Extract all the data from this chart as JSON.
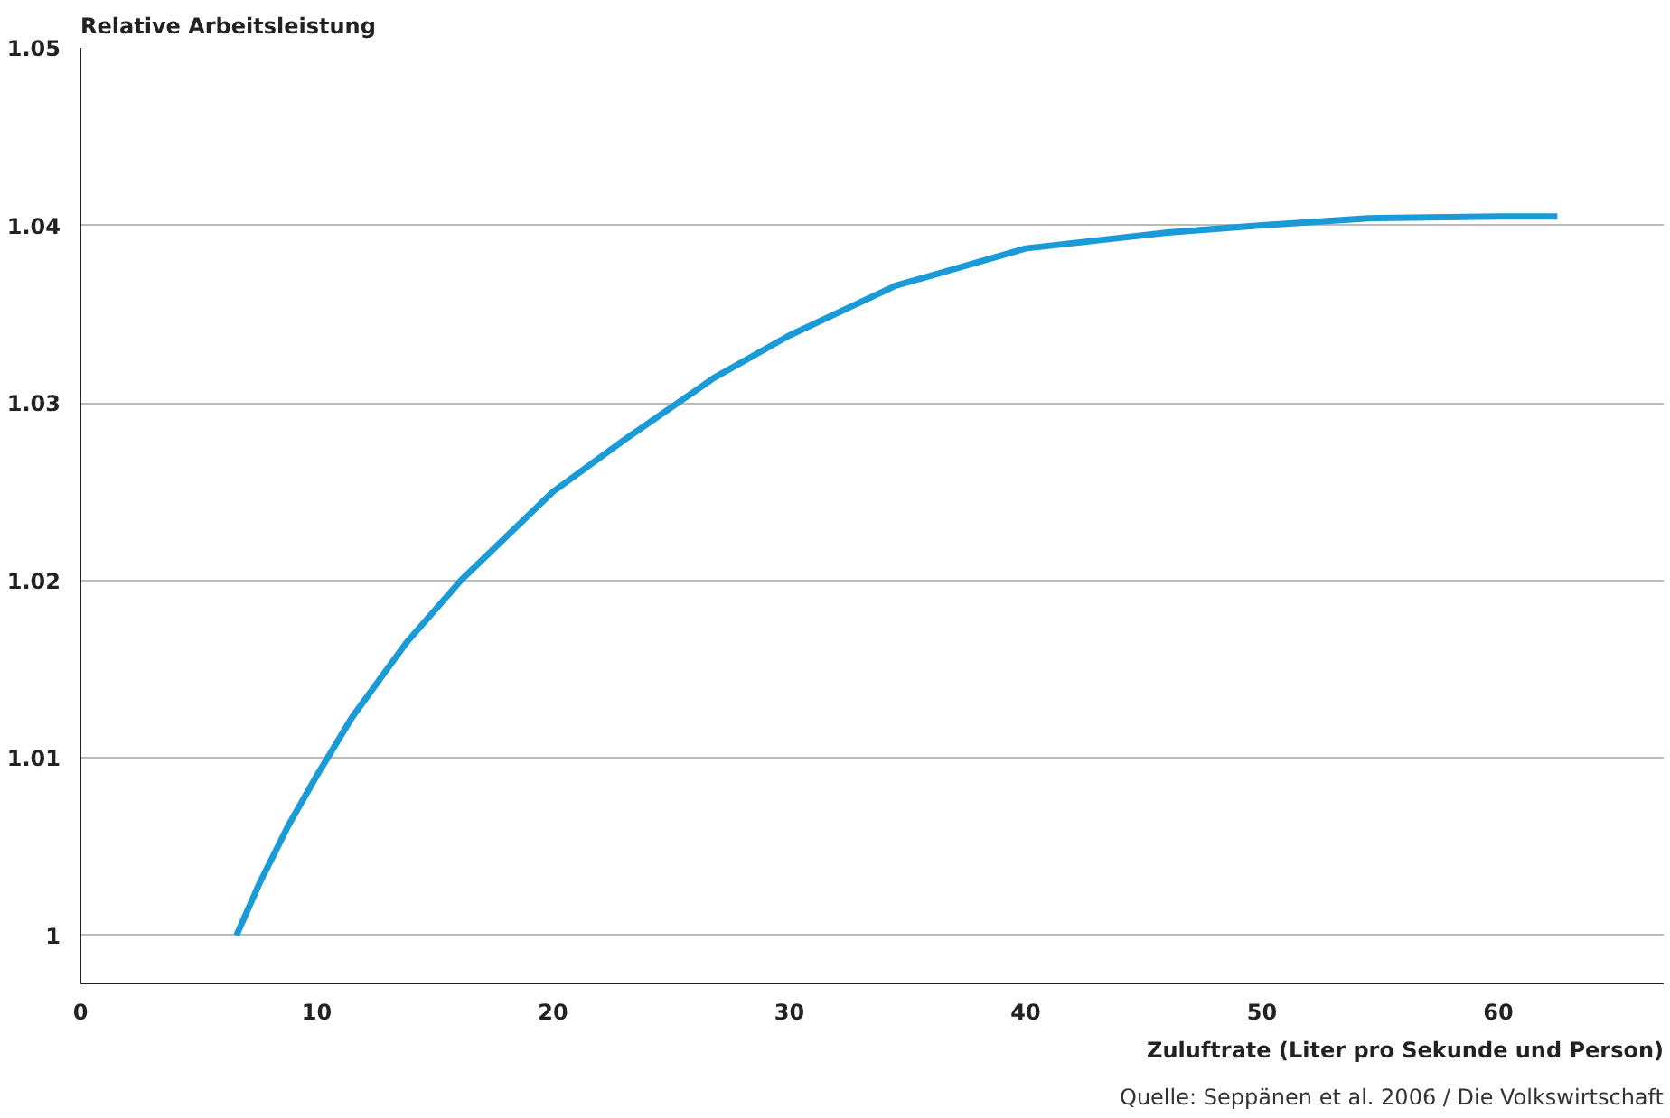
{
  "chart_data": {
    "type": "line",
    "ylabel": "Relative Arbeitsleistung",
    "xlabel": "Zuluftrate (Liter pro Sekunde und Person)",
    "annotations": [
      "Quelle: Seppänen et al. 2006 / Die Volkswirtschaft"
    ],
    "x": [
      6.6,
      7.6,
      8.8,
      10,
      11.5,
      13.8,
      16.1,
      20,
      23,
      26.8,
      30,
      34.5,
      40,
      46,
      50,
      54.5,
      60,
      62.5
    ],
    "series": [
      {
        "color": "#1a9ad6",
        "values": [
          1.0,
          1.003,
          1.0062,
          1.009,
          1.0123,
          1.0165,
          1.02,
          1.025,
          1.0279,
          1.0314,
          1.0338,
          1.0366,
          1.0387,
          1.0396,
          1.04,
          1.0404,
          1.0405,
          1.0405
        ]
      }
    ],
    "xlim": [
      0,
      67
    ],
    "ylim": [
      0.9973,
      1.05
    ],
    "xticks": [
      0,
      10,
      20,
      30,
      40,
      50,
      60
    ],
    "yticks": [
      1,
      1.01,
      1.02,
      1.03,
      1.04,
      1.05
    ],
    "grid": "y",
    "marker": "none",
    "line_style": "solid"
  }
}
